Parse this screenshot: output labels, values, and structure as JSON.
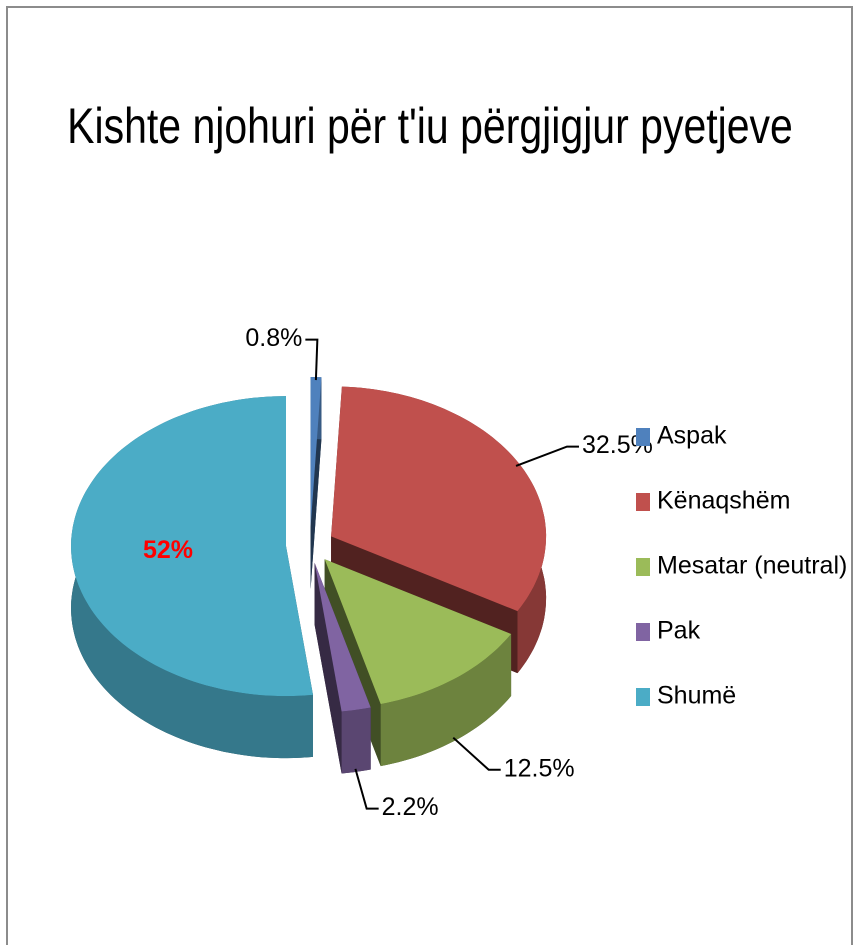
{
  "chart_data": {
    "type": "pie3d",
    "title": "Kishte njohuri për t'iu përgjigjur pyetjeve",
    "categories": [
      "Aspak",
      "Kënaqshëm",
      "Mesatar (neutral)",
      "Pak",
      "Shumë"
    ],
    "values": [
      0.8,
      32.5,
      12.5,
      2.2,
      52
    ],
    "value_labels": [
      "0.8%",
      "32.5%",
      "12.5%",
      "2.2%",
      "52%"
    ],
    "colors": [
      "#4f81bd",
      "#c0504d",
      "#9bbb59",
      "#8064a2",
      "#4bacc6"
    ],
    "inside_label_color": "#ff0000",
    "legend": "right"
  }
}
